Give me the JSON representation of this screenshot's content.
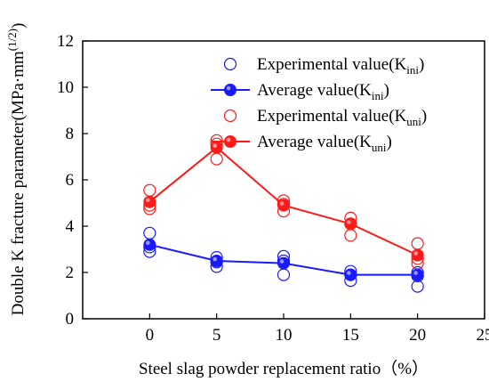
{
  "chart_data": {
    "type": "scatter",
    "title": "",
    "xlabel": "Steel slag powder replacement ratio（%）",
    "ylabel": {
      "main": "Double K fracture parameter(MPa·mm",
      "sup": "(1/2)",
      "close": ")"
    },
    "xlim": [
      -5,
      25
    ],
    "ylim": [
      0,
      12
    ],
    "xticks": [
      0,
      5,
      10,
      15,
      20,
      25
    ],
    "yticks": [
      0,
      2,
      4,
      6,
      8,
      10,
      12
    ],
    "grid": false,
    "legend_position": "top-right",
    "legend": [
      {
        "text": "Experimental value(K",
        "sub": "ini",
        "close": ")",
        "marker": "open-circle",
        "color": "#1a1aff"
      },
      {
        "text": "Average value(K",
        "sub": "ini",
        "close": ")",
        "marker": "filled-circle-line",
        "color": "#1a1aff"
      },
      {
        "text": "Experimental value(K",
        "sub": "uni",
        "close": ")",
        "marker": "open-circle",
        "color": "#ff1a1a"
      },
      {
        "text": "Average value(K",
        "sub": "uni",
        "close": ")",
        "marker": "filled-circle-line",
        "color": "#ff1a1a"
      }
    ],
    "series": [
      {
        "name": "Experimental value(Kini)",
        "kind": "scatter-open",
        "color": "#1a1aff",
        "points": [
          [
            0,
            3.7
          ],
          [
            0,
            3.1
          ],
          [
            0,
            2.9
          ],
          [
            5,
            2.65
          ],
          [
            5,
            2.45
          ],
          [
            5,
            2.25
          ],
          [
            10,
            2.7
          ],
          [
            10,
            2.5
          ],
          [
            10,
            1.9
          ],
          [
            15,
            2.05
          ],
          [
            15,
            1.9
          ],
          [
            15,
            1.65
          ],
          [
            20,
            2.0
          ],
          [
            20,
            1.85
          ],
          [
            20,
            1.4
          ]
        ]
      },
      {
        "name": "Average value(Kini)",
        "kind": "line-filled",
        "color": "#1a1aff",
        "points": [
          [
            0,
            3.2
          ],
          [
            5,
            2.5
          ],
          [
            10,
            2.4
          ],
          [
            15,
            1.9
          ],
          [
            20,
            1.9
          ]
        ]
      },
      {
        "name": "Experimental value(Kuni)",
        "kind": "scatter-open",
        "color": "#ff1a1a",
        "points": [
          [
            0,
            5.55
          ],
          [
            0,
            4.9
          ],
          [
            0,
            4.75
          ],
          [
            5,
            7.7
          ],
          [
            5,
            7.55
          ],
          [
            5,
            6.9
          ],
          [
            10,
            5.1
          ],
          [
            10,
            4.95
          ],
          [
            10,
            4.65
          ],
          [
            15,
            4.35
          ],
          [
            15,
            4.1
          ],
          [
            15,
            3.6
          ],
          [
            20,
            3.25
          ],
          [
            20,
            2.6
          ],
          [
            20,
            2.4
          ]
        ]
      },
      {
        "name": "Average value(Kuni)",
        "kind": "line-filled",
        "color": "#ff1a1a",
        "points": [
          [
            0,
            5.05
          ],
          [
            5,
            7.4
          ],
          [
            10,
            4.9
          ],
          [
            15,
            4.1
          ],
          [
            20,
            2.75
          ]
        ]
      }
    ]
  }
}
